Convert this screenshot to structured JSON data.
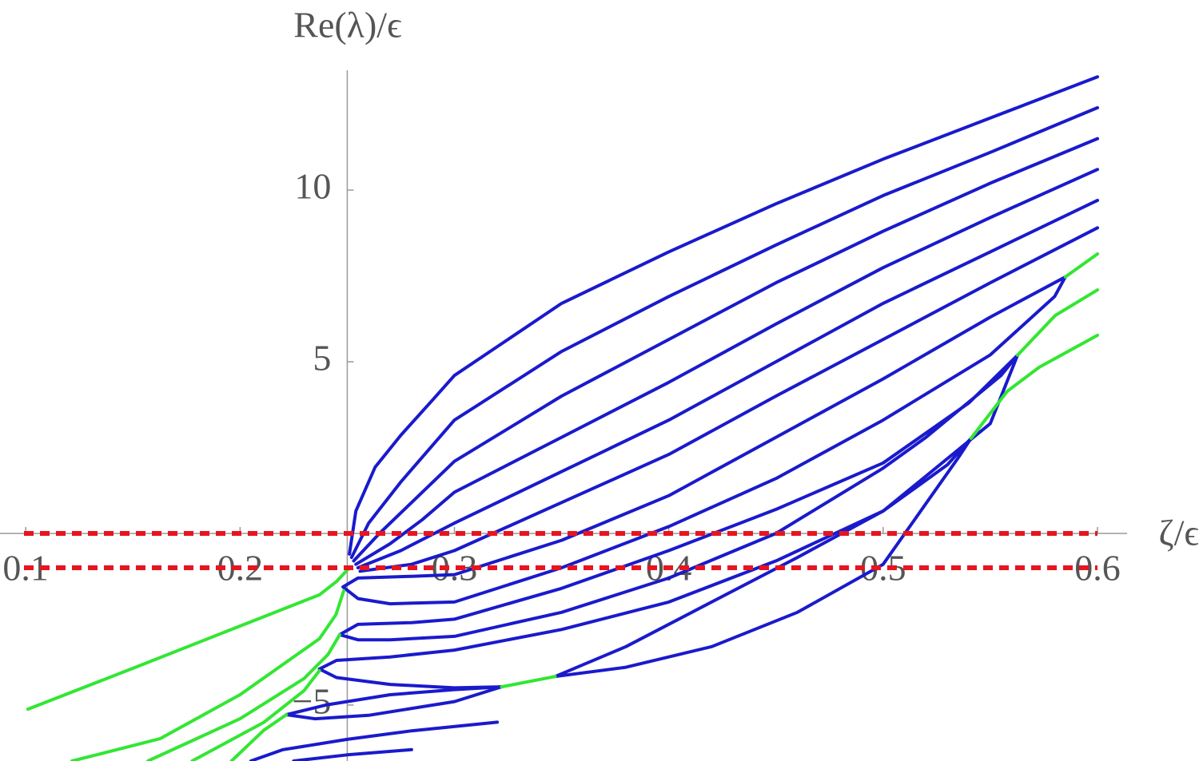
{
  "chart_data": {
    "type": "line",
    "x_label": "ζ/ϵ",
    "y_label": "Re(λ)/ϵ",
    "xlim": [
      0.088,
      0.6
    ],
    "ylim": [
      -6.63,
      13.49
    ],
    "xticks": [
      0.1,
      0.2,
      0.3,
      0.4,
      0.5,
      0.6
    ],
    "yticks": [
      {
        "value": -5,
        "label": "−5"
      },
      5,
      10
    ],
    "origin": {
      "x": 0.25,
      "y": 0
    },
    "hlines": [
      {
        "y": 0,
        "color": "#e8141e"
      },
      {
        "y": -1,
        "color": "#e8141e"
      }
    ],
    "series": [
      {
        "color": "#1a1acc",
        "x": [
          0.251,
          0.254,
          0.263,
          0.275,
          0.29,
          0.3,
          0.35,
          0.4,
          0.45,
          0.5,
          0.55,
          0.6
        ],
        "values": [
          -0.6,
          0.65,
          1.93,
          2.86,
          3.9,
          4.6,
          6.7,
          8.2,
          9.6,
          10.9,
          12.1,
          13.3
        ]
      },
      {
        "color": "#1a1acc",
        "x": [
          0.252,
          0.26,
          0.275,
          0.3,
          0.35,
          0.4,
          0.45,
          0.5,
          0.55,
          0.6
        ],
        "values": [
          -0.7,
          0.3,
          1.5,
          3.3,
          5.3,
          6.9,
          8.4,
          9.84,
          11.1,
          12.4
        ]
      },
      {
        "color": "#1a1acc",
        "x": [
          0.253,
          0.265,
          0.28,
          0.3,
          0.35,
          0.4,
          0.45,
          0.5,
          0.55,
          0.6
        ],
        "values": [
          -0.8,
          0,
          0.9,
          2.1,
          4.0,
          5.65,
          7.3,
          8.8,
          10.2,
          11.5
        ]
      },
      {
        "color": "#1a1acc",
        "x": [
          0.254,
          0.27,
          0.285,
          0.3,
          0.35,
          0.4,
          0.45,
          0.5,
          0.55,
          0.6
        ],
        "values": [
          -0.9,
          -0.3,
          0.4,
          1.2,
          2.8,
          4.4,
          6.1,
          7.74,
          9.2,
          10.6
        ]
      },
      {
        "color": "#1a1acc",
        "x": [
          0.255,
          0.275,
          0.3,
          0.35,
          0.4,
          0.45,
          0.5,
          0.55,
          0.6
        ],
        "values": [
          -1.0,
          -0.5,
          0.3,
          1.8,
          3.3,
          5.0,
          6.7,
          8.2,
          9.7
        ]
      },
      {
        "color": "#1a1acc",
        "x": [
          0.256,
          0.28,
          0.3,
          0.35,
          0.4,
          0.45,
          0.5,
          0.55,
          0.6
        ],
        "values": [
          -1.1,
          -0.9,
          -0.5,
          0.9,
          2.3,
          4.0,
          5.65,
          7.3,
          8.9
        ]
      },
      {
        "color": "#1a1acc",
        "x": [
          0.248,
          0.255,
          0.28,
          0.3,
          0.35,
          0.4,
          0.45,
          0.5,
          0.55,
          0.585,
          0.58,
          0.55,
          0.5,
          0.45,
          0.4,
          0.35,
          0.3,
          0.27,
          0.255,
          0.248
        ],
        "values": [
          -1.56,
          -1.3,
          -1.25,
          -1.2,
          -0.2,
          1.1,
          2.8,
          4.5,
          6.3,
          7.47,
          6.9,
          5.2,
          3.3,
          1.6,
          0.2,
          -1.0,
          -2.0,
          -2.05,
          -1.9,
          -1.56
        ]
      },
      {
        "color": "#1a1acc",
        "x": [
          0.2465,
          0.255,
          0.28,
          0.3,
          0.35,
          0.4,
          0.45,
          0.5,
          0.54,
          0.5627,
          0.555,
          0.52,
          0.5,
          0.45,
          0.4,
          0.35,
          0.3,
          0.27,
          0.255,
          0.2465
        ],
        "values": [
          -2.95,
          -2.65,
          -2.6,
          -2.5,
          -1.6,
          -0.5,
          0.7,
          2.05,
          3.8,
          5.19,
          4.6,
          2.8,
          1.9,
          0.0,
          -1.3,
          -2.3,
          -3.0,
          -3.1,
          -3.1,
          -2.95
        ]
      },
      {
        "color": "#1a1acc",
        "x": [
          0.322,
          0.3,
          0.27,
          0.245,
          0.237,
          0.245,
          0.27,
          0.3,
          0.35,
          0.4,
          0.45,
          0.5,
          0.55,
          0.5627
        ],
        "values": [
          -4.47,
          -4.5,
          -4.4,
          -4.2,
          -3.95,
          -3.7,
          -3.6,
          -3.4,
          -2.8,
          -2.0,
          -0.8,
          0.65,
          3.2,
          5.19
        ]
      },
      {
        "color": "#1a1acc",
        "x": [
          0.347,
          0.38,
          0.42,
          0.46,
          0.5,
          0.53,
          0.541,
          0.535,
          0.5,
          0.46,
          0.42,
          0.38,
          0.347
        ],
        "values": [
          -4.17,
          -3.3,
          -2.0,
          -0.7,
          0.65,
          2.0,
          2.77,
          2.2,
          -0.9,
          -2.3,
          -3.3,
          -3.9,
          -4.17
        ]
      },
      {
        "color": "#1a1acc",
        "x": [
          0.322,
          0.3,
          0.27,
          0.24,
          0.2216,
          0.235,
          0.26,
          0.3,
          0.322
        ],
        "values": [
          -4.47,
          -4.55,
          -4.7,
          -5.0,
          -5.28,
          -5.4,
          -5.3,
          -4.9,
          -4.47
        ]
      },
      {
        "color": "#1a1acc",
        "x": [
          0.205,
          0.22,
          0.25,
          0.28,
          0.32
        ],
        "values": [
          -6.63,
          -6.3,
          -6.0,
          -5.75,
          -5.5
        ]
      },
      {
        "color": "#1a1acc",
        "x": [
          0.225,
          0.25,
          0.28
        ],
        "values": [
          -6.63,
          -6.45,
          -6.3
        ]
      },
      {
        "color": "#33e633",
        "x": [
          0.251,
          0.245,
          0.237,
          0.2,
          0.15,
          0.101
        ],
        "values": [
          -1.0,
          -1.4,
          -1.79,
          -2.7,
          -3.93,
          -5.12
        ]
      },
      {
        "color": "#33e633",
        "x": [
          0.2484,
          0.2447,
          0.237,
          0.2,
          0.1626,
          0.1216
        ],
        "values": [
          -1.67,
          -2.37,
          -3.07,
          -4.7,
          -5.98,
          -6.63
        ]
      },
      {
        "color": "#33e633",
        "x": [
          0.2465,
          0.241,
          0.2298,
          0.2,
          0.157
        ],
        "values": [
          -2.95,
          -3.53,
          -4.23,
          -5.4,
          -6.63
        ]
      },
      {
        "color": "#33e633",
        "x": [
          0.237,
          0.2298,
          0.211,
          0.1776
        ],
        "values": [
          -4.0,
          -4.58,
          -5.51,
          -6.63
        ]
      },
      {
        "color": "#33e633",
        "x": [
          0.2216,
          0.211,
          0.196
        ],
        "values": [
          -5.28,
          -5.74,
          -6.63
        ]
      },
      {
        "color": "#33e633",
        "x": [
          0.322,
          0.347
        ],
        "values": [
          -4.47,
          -4.17
        ]
      },
      {
        "color": "#33e633",
        "x": [
          0.585,
          0.6
        ],
        "values": [
          7.47,
          8.14
        ]
      },
      {
        "color": "#33e633",
        "x": [
          0.5627,
          0.5803,
          0.6
        ],
        "values": [
          5.19,
          6.35,
          7.09
        ]
      },
      {
        "color": "#33e633",
        "x": [
          0.541,
          0.5579,
          0.5728,
          0.6
        ],
        "values": [
          2.77,
          4.14,
          4.84,
          5.77
        ]
      }
    ]
  }
}
